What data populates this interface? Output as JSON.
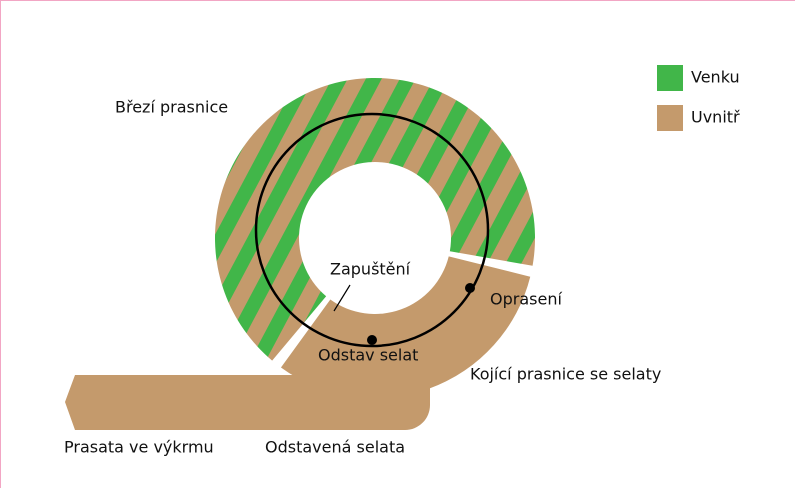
{
  "legend": {
    "items": [
      {
        "label": "Venku",
        "color": "#41b649"
      },
      {
        "label": "Uvnitř",
        "color": "#c49a6c"
      }
    ]
  },
  "labels": {
    "pregnant": "Březí prasnice",
    "insemination": "Zapuštění",
    "farrowing": "Oprasení",
    "weaning": "Odstav selat",
    "lactating": "Kojící prasnice se selaty",
    "finishing": "Prasata ve výkrmu",
    "weaned": "Odstavená selata"
  }
}
